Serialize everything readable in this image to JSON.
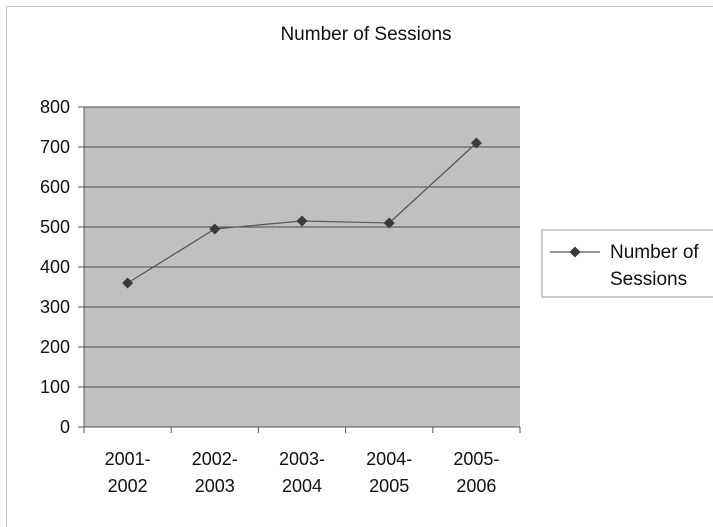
{
  "chart_data": {
    "type": "line",
    "title": "Number of Sessions",
    "categories": [
      [
        "2001-",
        "2002"
      ],
      [
        "2002-",
        "2003"
      ],
      [
        "2003-",
        "2004"
      ],
      [
        "2004-",
        "2005"
      ],
      [
        "2005-",
        "2006"
      ]
    ],
    "series": [
      {
        "name": [
          "Number of",
          "Sessions"
        ],
        "values": [
          360,
          495,
          515,
          510,
          710
        ]
      }
    ],
    "ylim": [
      0,
      800
    ],
    "yticks": [
      "0",
      "100",
      "200",
      "300",
      "400",
      "500",
      "600",
      "700",
      "800"
    ],
    "grid": true,
    "legend": "right",
    "colors": {
      "plot_bg": "#c0c0c0",
      "gridline": "#4a4a4a",
      "line": "#555555",
      "marker": "#3a3a3a"
    }
  }
}
